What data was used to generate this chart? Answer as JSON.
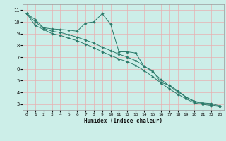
{
  "xlabel": "Humidex (Indice chaleur)",
  "bg_color": "#cceee8",
  "grid_color": "#e8b0b0",
  "line_color": "#2a7a6a",
  "marker_color": "#2a7a6a",
  "xlim": [
    -0.5,
    23.5
  ],
  "ylim": [
    2.5,
    11.5
  ],
  "xticks": [
    0,
    1,
    2,
    3,
    4,
    5,
    6,
    7,
    8,
    9,
    10,
    11,
    12,
    13,
    14,
    15,
    16,
    17,
    18,
    19,
    20,
    21,
    22,
    23
  ],
  "yticks": [
    3,
    4,
    5,
    6,
    7,
    8,
    9,
    10,
    11
  ],
  "lines": [
    {
      "x": [
        0,
        1,
        2,
        3,
        4,
        5,
        6,
        7,
        8,
        9,
        10,
        11,
        12,
        13,
        14,
        15,
        16,
        17,
        18,
        19,
        20,
        21,
        22,
        23
      ],
      "y": [
        10.7,
        10.2,
        9.5,
        9.4,
        9.35,
        9.3,
        9.2,
        9.9,
        10.0,
        10.7,
        9.8,
        7.45,
        7.45,
        7.35,
        6.2,
        5.85,
        4.85,
        4.6,
        4.15,
        3.6,
        3.25,
        3.1,
        3.05,
        2.85
      ]
    },
    {
      "x": [
        0,
        1,
        2,
        3,
        4,
        5,
        6,
        7,
        8,
        9,
        10,
        11,
        12,
        13,
        14,
        15,
        16,
        17,
        18,
        19,
        20,
        21,
        22,
        23
      ],
      "y": [
        10.7,
        10.0,
        9.45,
        9.2,
        9.1,
        8.9,
        8.7,
        8.45,
        8.2,
        7.85,
        7.55,
        7.25,
        7.0,
        6.7,
        6.25,
        5.75,
        5.1,
        4.55,
        4.05,
        3.6,
        3.2,
        3.05,
        2.95,
        2.8
      ]
    },
    {
      "x": [
        0,
        1,
        2,
        3,
        4,
        5,
        6,
        7,
        8,
        9,
        10,
        11,
        12,
        13,
        14,
        15,
        16,
        17,
        18,
        19,
        20,
        21,
        22,
        23
      ],
      "y": [
        10.7,
        9.7,
        9.35,
        9.0,
        8.85,
        8.6,
        8.4,
        8.1,
        7.8,
        7.45,
        7.15,
        6.85,
        6.6,
        6.3,
        5.85,
        5.35,
        4.8,
        4.3,
        3.85,
        3.45,
        3.1,
        2.98,
        2.88,
        2.78
      ]
    }
  ]
}
